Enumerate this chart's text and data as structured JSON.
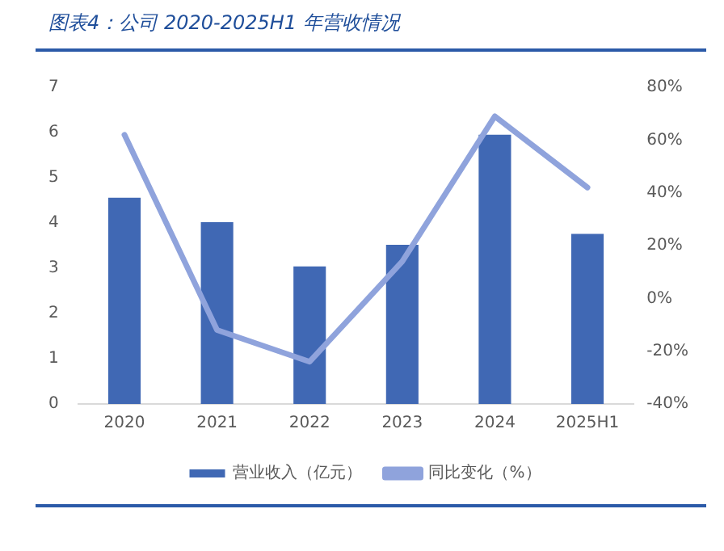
{
  "chart_data": {
    "type": "bar",
    "title": "图表4：公司 2020-2025H1 年营收情况",
    "categories": [
      "2020",
      "2021",
      "2022",
      "2023",
      "2024",
      "2025H1"
    ],
    "series": [
      {
        "name": "营业收入（亿元）",
        "color": "#4068b4",
        "values": [
          4.56,
          4.02,
          3.04,
          3.52,
          5.95,
          3.76
        ]
      },
      {
        "name": "同比变化（%）",
        "type": "line",
        "axis": "y2",
        "color": "#8fa3dc",
        "values": [
          62,
          -12,
          -24,
          14,
          69,
          42
        ]
      }
    ],
    "ylim": [
      0,
      7
    ],
    "yticks": [
      0,
      1,
      2,
      3,
      4,
      5,
      6,
      7
    ],
    "y2lim": [
      -40,
      80
    ],
    "y2ticks": [
      {
        "value": -40,
        "label": "-40%"
      },
      {
        "value": -20,
        "label": "-20%"
      },
      {
        "value": 0,
        "label": "0%"
      },
      {
        "value": 20,
        "label": "20%"
      },
      {
        "value": 40,
        "label": "40%"
      },
      {
        "value": 60,
        "label": "60%"
      },
      {
        "value": 80,
        "label": "80%"
      }
    ],
    "grid": false,
    "legend": "bottom",
    "marker": "none"
  }
}
